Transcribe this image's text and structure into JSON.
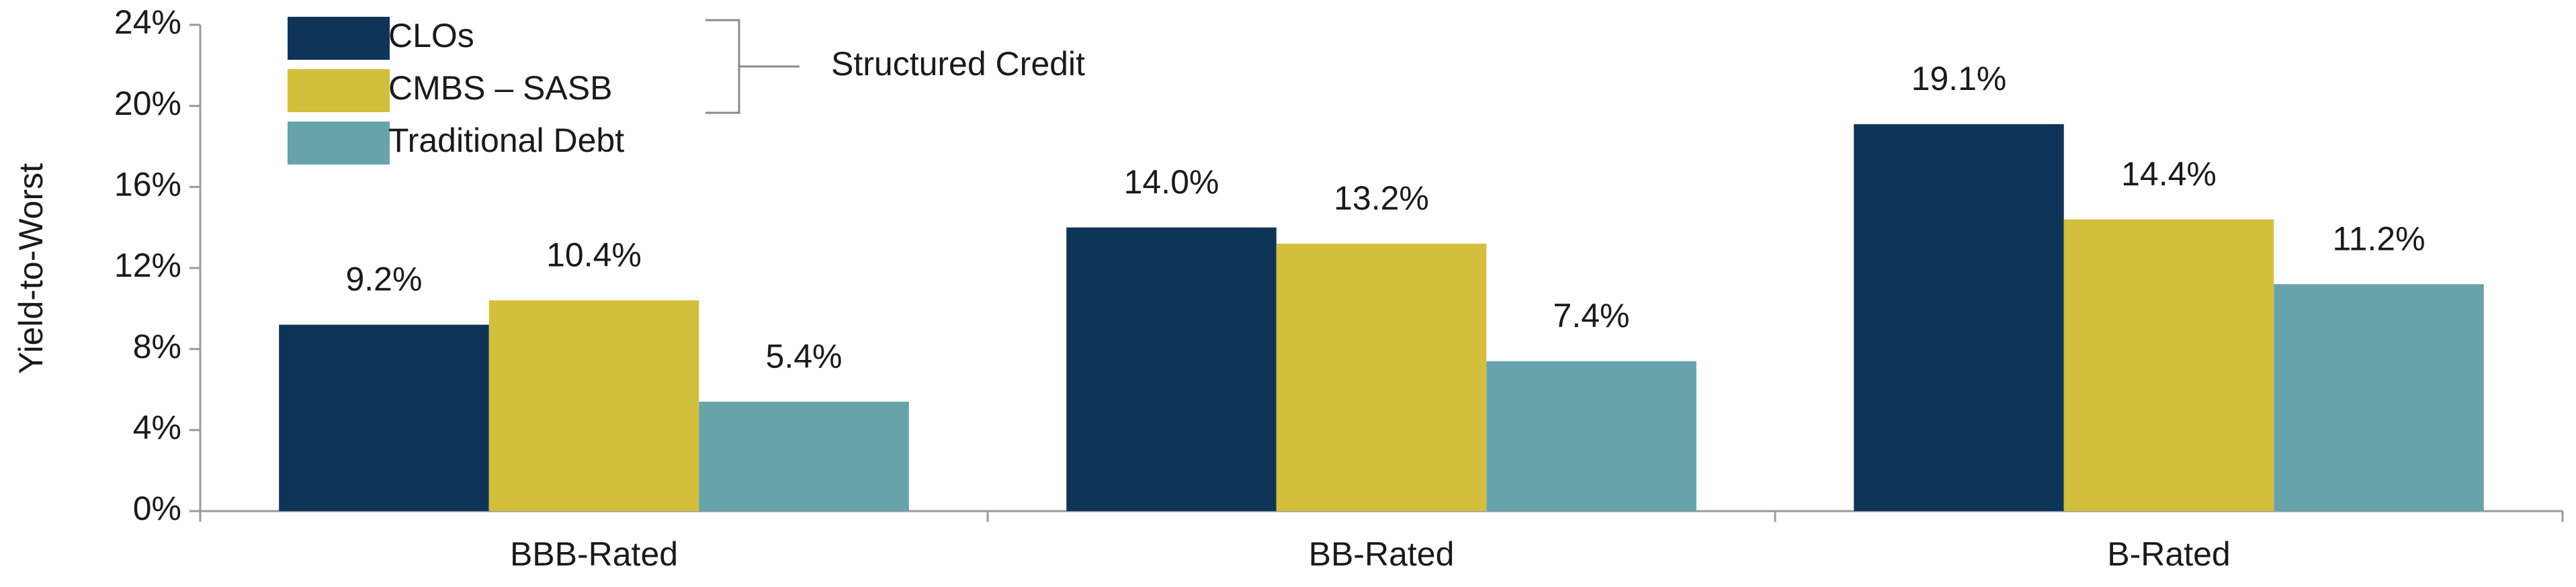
{
  "chart_data": {
    "type": "bar",
    "y_label": "Yield-to-Worst",
    "annotation": "Structured Credit",
    "categories": [
      "BBB-Rated",
      "BB-Rated",
      "B-Rated"
    ],
    "series": [
      {
        "name": "CLOs",
        "color": "#0e3557",
        "values": [
          9.2,
          14.0,
          19.1
        ],
        "value_labels": [
          "9.2%",
          "14.0%",
          "19.1%"
        ]
      },
      {
        "name": "CMBS – SASB",
        "color": "#d4bf3d",
        "values": [
          10.4,
          13.2,
          14.4
        ],
        "value_labels": [
          "10.4%",
          "13.2%",
          "14.4%"
        ]
      },
      {
        "name": "Traditional Debt",
        "color": "#67a3ab",
        "values": [
          5.4,
          7.4,
          11.2
        ],
        "value_labels": [
          "5.4%",
          "7.4%",
          "11.2%"
        ]
      }
    ],
    "ylim": [
      0,
      24
    ],
    "yticks": [
      {
        "value": 0,
        "label": "0%"
      },
      {
        "value": 4,
        "label": "4%"
      },
      {
        "value": 8,
        "label": "8%"
      },
      {
        "value": 12,
        "label": "12%"
      },
      {
        "value": 16,
        "label": "16%"
      },
      {
        "value": 20,
        "label": "20%"
      },
      {
        "value": 24,
        "label": "24%"
      }
    ],
    "grid": false
  }
}
